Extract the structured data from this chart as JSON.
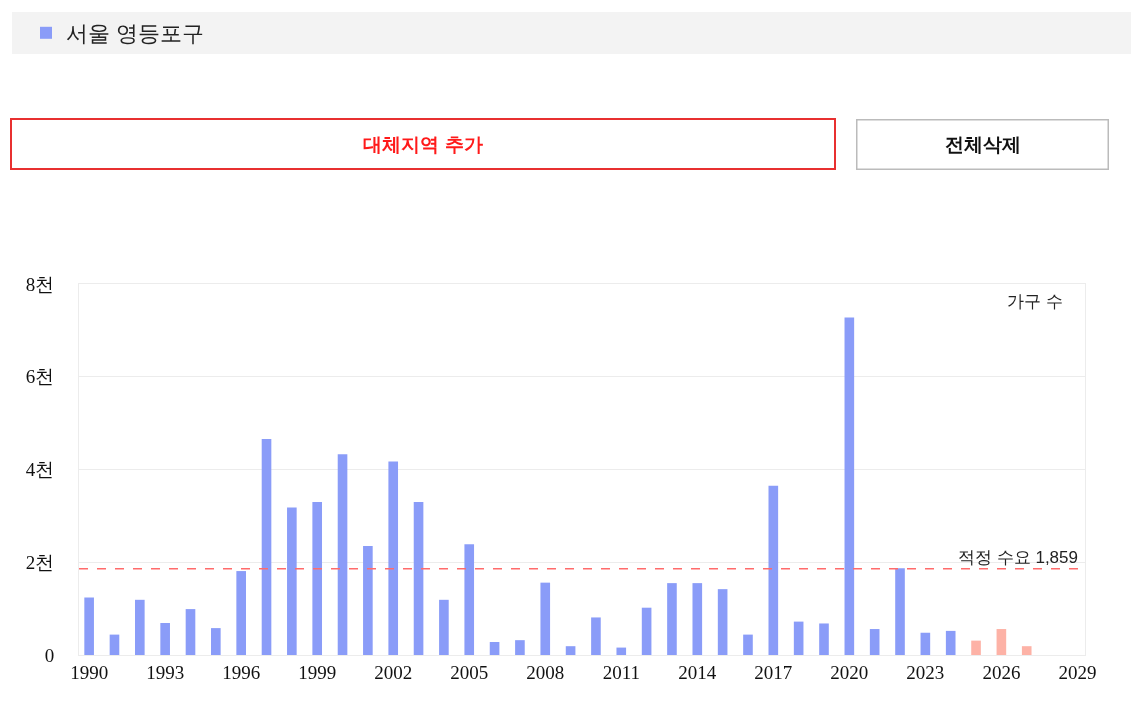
{
  "chart_data": {
    "type": "bar",
    "ylabel": "가구 수",
    "annotations": [
      "대체지역 추가",
      "전체삭제"
    ],
    "x": [
      1990,
      1991,
      1992,
      1993,
      1994,
      1995,
      1996,
      1997,
      1998,
      1999,
      2000,
      2001,
      2002,
      2003,
      2004,
      2005,
      2006,
      2007,
      2008,
      2009,
      2010,
      2011,
      2012,
      2013,
      2014,
      2015,
      2016,
      2017,
      2018,
      2019,
      2020,
      2021,
      2022,
      2023,
      2024,
      2025,
      2026,
      2027
    ],
    "series": [
      {
        "name": "서울 영등포구",
        "color": "#8a9cf8",
        "values": [
          1.24,
          0.44,
          1.19,
          0.69,
          0.99,
          0.58,
          1.81,
          4.66,
          3.18,
          3.3,
          4.33,
          2.35,
          4.17,
          3.3,
          1.19,
          2.39,
          0.28,
          0.32,
          1.56,
          0.19,
          0.81,
          0.16,
          1.02,
          1.55,
          1.55,
          1.42,
          0.44,
          3.65,
          0.72,
          0.68,
          7.28,
          0.56,
          1.87,
          0.48,
          0.52,
          null,
          null,
          null
        ]
      },
      {
        "color": "#fdb2a6",
        "values": [
          null,
          null,
          null,
          null,
          null,
          null,
          null,
          null,
          null,
          null,
          null,
          null,
          null,
          null,
          null,
          null,
          null,
          null,
          null,
          null,
          null,
          null,
          null,
          null,
          null,
          null,
          null,
          null,
          null,
          null,
          null,
          null,
          null,
          null,
          null,
          0.31,
          0.56,
          0.19
        ]
      }
    ],
    "xlim": [
      1989.6,
      2029.3
    ],
    "xticks": [
      1990,
      1993,
      1996,
      1999,
      2002,
      2005,
      2008,
      2011,
      2014,
      2017,
      2020,
      2023,
      2026,
      2029
    ],
    "ylim": [
      0,
      8
    ],
    "yticks": [
      0,
      {
        "value": 2,
        "label": "2천"
      },
      {
        "value": 4,
        "label": "4천"
      },
      {
        "value": 6,
        "label": "6천"
      },
      {
        "value": 8,
        "label": "8천"
      }
    ],
    "ref_lines": [
      {
        "axis": "y",
        "value": 1.859,
        "label": "적정 수요 1,859",
        "color": "#ff6b6b",
        "line_style": "dashed"
      }
    ],
    "grid": "y",
    "legend": "top left"
  }
}
